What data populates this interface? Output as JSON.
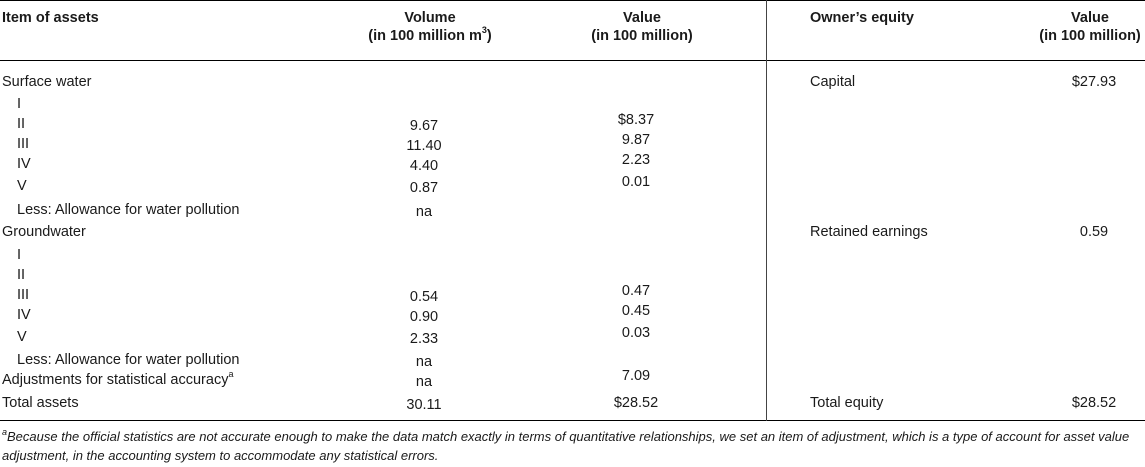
{
  "header": {
    "item_of_assets": "Item of assets",
    "volume_line1": "Volume",
    "volume_line2": "(in 100 million m",
    "volume_sup": "3",
    "volume_close": ")",
    "value_line1": "Value",
    "value_line2": "(in 100 million)",
    "owners_equity": "Owner’s equity",
    "equity_value_line1": "Value",
    "equity_value_line2": "(in 100 million)"
  },
  "asset_rows": [
    {
      "label": "Surface water",
      "indent": false,
      "volume": "",
      "value": ""
    },
    {
      "label": "I",
      "indent": true,
      "volume": "",
      "value": ""
    },
    {
      "label": "II",
      "indent": true,
      "volume": "9.67",
      "value": "$8.37"
    },
    {
      "label": "III",
      "indent": true,
      "volume": "11.40",
      "value": "9.87"
    },
    {
      "label": "IV",
      "indent": true,
      "volume": "4.40",
      "value": "2.23"
    },
    {
      "label": "V",
      "indent": true,
      "volume": "0.87",
      "value": "0.01"
    },
    {
      "label": "Less: Allowance for water pollution",
      "indent": true,
      "volume": "na",
      "value": ""
    },
    {
      "label": "Groundwater",
      "indent": false,
      "volume": "",
      "value": ""
    },
    {
      "label": "I",
      "indent": true,
      "volume": "",
      "value": ""
    },
    {
      "label": "II",
      "indent": true,
      "volume": "",
      "value": ""
    },
    {
      "label": "III",
      "indent": true,
      "volume": "0.54",
      "value": "0.47"
    },
    {
      "label": "IV",
      "indent": true,
      "volume": "0.90",
      "value": "0.45"
    },
    {
      "label": "V",
      "indent": true,
      "volume": "2.33",
      "value": "0.03"
    },
    {
      "label": "Less: Allowance for water pollution",
      "indent": true,
      "volume": "na",
      "value": ""
    },
    {
      "label": "Adjustments for statistical accuracy",
      "label_sup": "a",
      "indent": false,
      "volume": "na",
      "value": "7.09"
    },
    {
      "label": "Total assets",
      "indent": false,
      "volume": "30.11",
      "value": "$28.52"
    }
  ],
  "equity_rows": [
    {
      "label": "Capital",
      "value": "$27.93"
    },
    {
      "label": "Retained earnings",
      "value": "0.59"
    },
    {
      "label": "Total equity",
      "value": "$28.52"
    }
  ],
  "footnote": {
    "marker": "a",
    "text": "Because the official statistics are not accurate enough to make the data match exactly in terms of quantitative relationships, we set an item of adjustment, which is a type of account for asset value adjustment, in the accounting system to accommodate any statistical errors."
  }
}
